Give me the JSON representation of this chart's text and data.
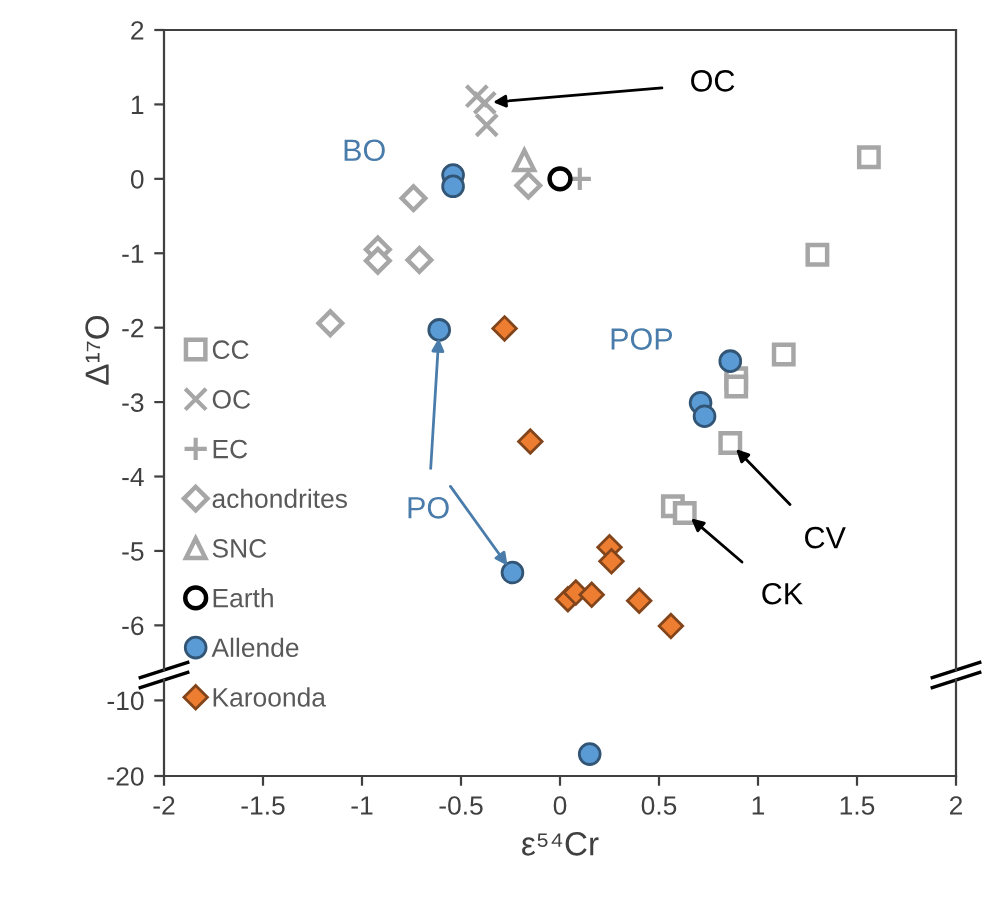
{
  "chart_data": [
    {
      "type": "scatter",
      "ylabel": "Δ¹⁷O",
      "xlim": [
        -2,
        2
      ],
      "ylim": [
        -6.6,
        2
      ],
      "yticks": [
        -6,
        -5,
        -4,
        -3,
        -2,
        -1,
        0,
        1,
        2
      ],
      "tick_labels": "y",
      "grid": false,
      "legend": "left",
      "series": [
        {
          "name": "CC",
          "color": "#a6a6a6",
          "marker": "square",
          "x": [
            1.56,
            1.3,
            1.13,
            0.89,
            0.89,
            0.86,
            0.57,
            0.63
          ],
          "values": [
            0.29,
            -1.02,
            -2.36,
            -2.68,
            -2.79,
            -3.55,
            -4.4,
            -4.49
          ]
        },
        {
          "name": "OC",
          "color": "#a6a6a6",
          "marker": "cross",
          "x": [
            -0.42,
            -0.38,
            -0.37
          ],
          "values": [
            1.11,
            1.02,
            0.72
          ]
        },
        {
          "name": "EC",
          "color": "#a6a6a6",
          "marker": "plus",
          "x": [
            0.1
          ],
          "values": [
            0.0
          ]
        },
        {
          "name": "achondrites",
          "color": "#a6a6a6",
          "marker": "diamond",
          "x": [
            -0.16,
            -0.74,
            -0.92,
            -0.92,
            -0.71,
            -1.16
          ],
          "values": [
            -0.09,
            -0.26,
            -0.95,
            -1.1,
            -1.09,
            -1.94
          ]
        },
        {
          "name": "SNC",
          "color": "#a6a6a6",
          "marker": "triangle",
          "x": [
            -0.18
          ],
          "values": [
            0.25
          ]
        },
        {
          "name": "Earth",
          "color": "#000000",
          "marker": "circle",
          "x": [
            0.0
          ],
          "values": [
            0.0
          ]
        },
        {
          "name": "Allende",
          "color": "#5b9bd5",
          "marker": "circle",
          "x": [
            -0.54,
            -0.54,
            -0.61,
            -0.24,
            0.86,
            0.71,
            0.73
          ],
          "values": [
            0.05,
            -0.1,
            -2.03,
            -5.29,
            -2.45,
            -3.01,
            -3.19
          ]
        },
        {
          "name": "Karoonda",
          "color": "#ed7d31",
          "marker": "diamond",
          "x": [
            -0.28,
            -0.15,
            0.25,
            0.26,
            0.04,
            0.08,
            0.16,
            0.4,
            0.56
          ],
          "values": [
            -2.01,
            -3.53,
            -4.95,
            -5.14,
            -5.65,
            -5.56,
            -5.59,
            -5.67,
            -6.01
          ]
        }
      ],
      "annotations": [
        {
          "text": "OC",
          "x": -0.38,
          "y": 1.02
        },
        {
          "text": "BO",
          "x": -0.54,
          "y": 0.05
        },
        {
          "text": "POP",
          "x": 0.86,
          "y": -2.45
        },
        {
          "text": "PO",
          "x": -0.61,
          "y": -2.03
        },
        {
          "text": "CV",
          "x": 0.86,
          "y": -3.55
        },
        {
          "text": "CK",
          "x": 0.63,
          "y": -4.49
        }
      ]
    },
    {
      "type": "scatter",
      "xlabel": "ε⁵⁴Cr",
      "xlim": [
        -2,
        2
      ],
      "ylim": [
        -20,
        -7.3
      ],
      "xticks": [
        -2,
        -1.5,
        -1,
        -0.5,
        0,
        0.5,
        1,
        1.5,
        2
      ],
      "yticks": [
        -20,
        -10
      ],
      "grid": false,
      "series": [
        {
          "color": "#5b9bd5",
          "marker": "circle",
          "x": [
            0.15
          ],
          "values": [
            -17.1
          ]
        }
      ]
    }
  ]
}
